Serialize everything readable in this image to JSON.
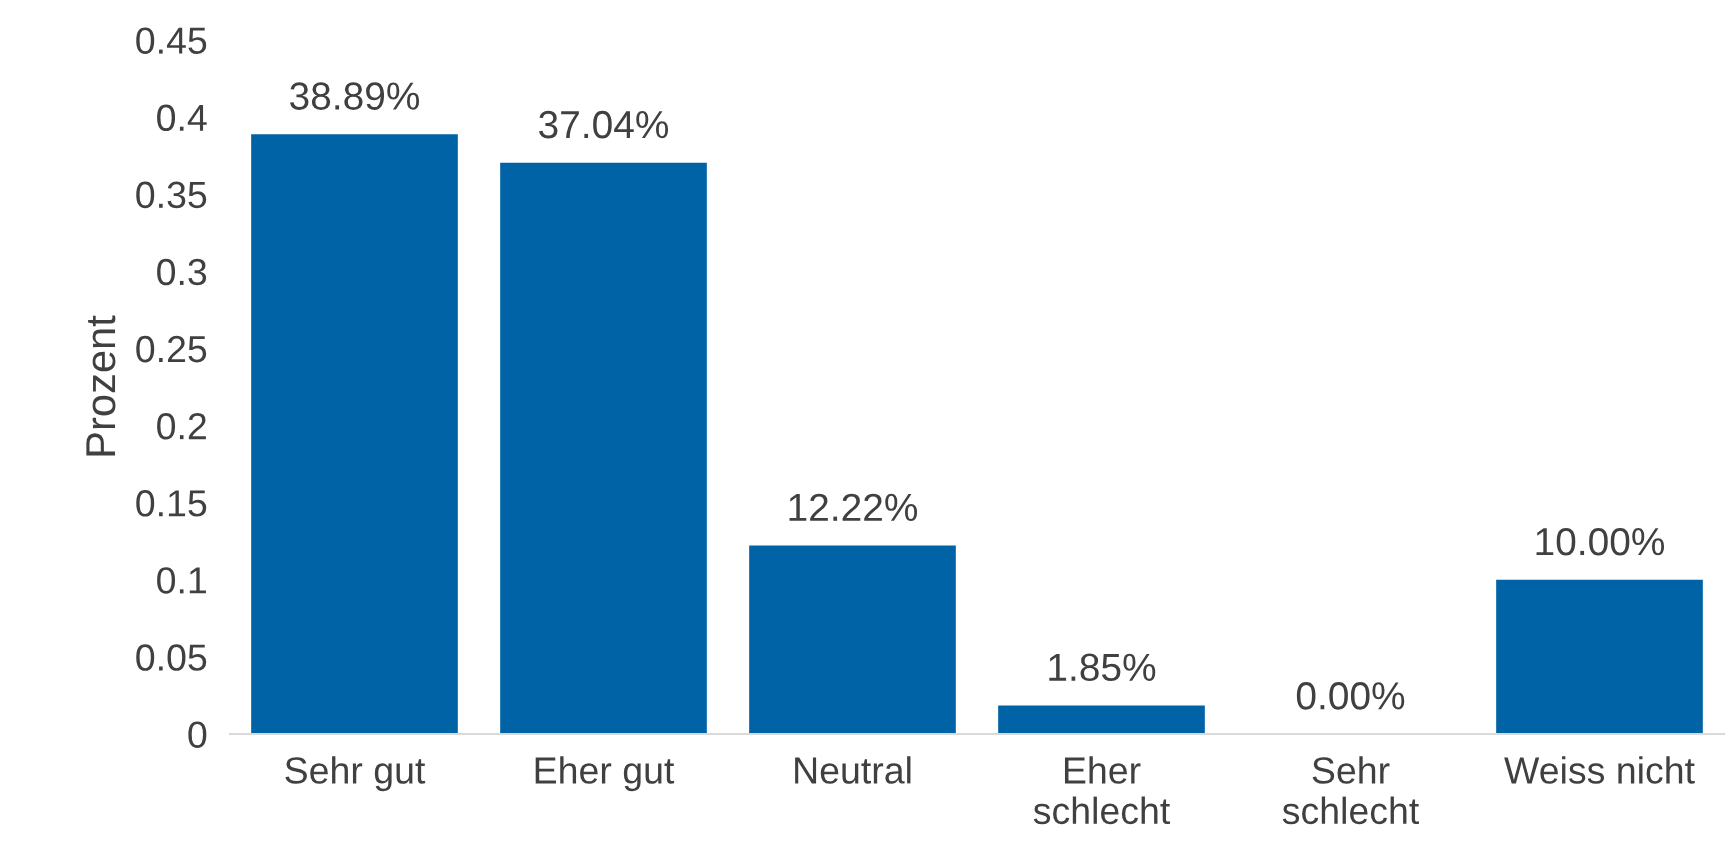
{
  "chart_data": {
    "type": "bar",
    "ylabel": "Prozent",
    "categories": [
      "Sehr gut",
      "Eher gut",
      "Neutral",
      "Eher\nschlecht",
      "Sehr\nschlecht",
      "Weiss nicht"
    ],
    "values": [
      0.3889,
      0.3704,
      0.1222,
      0.0185,
      0.0,
      0.1
    ],
    "value_labels": [
      "38.89%",
      "37.04%",
      "12.22%",
      "1.85%",
      "0.00%",
      "10.00%"
    ],
    "color": "#0063a6",
    "ylim": [
      0,
      0.45
    ],
    "yticks": [
      {
        "value": 0,
        "label": "0"
      },
      0.05,
      0.1,
      0.15,
      0.2,
      0.25,
      0.3,
      0.35,
      0.4,
      0.45
    ],
    "grid": false,
    "legend": false
  }
}
